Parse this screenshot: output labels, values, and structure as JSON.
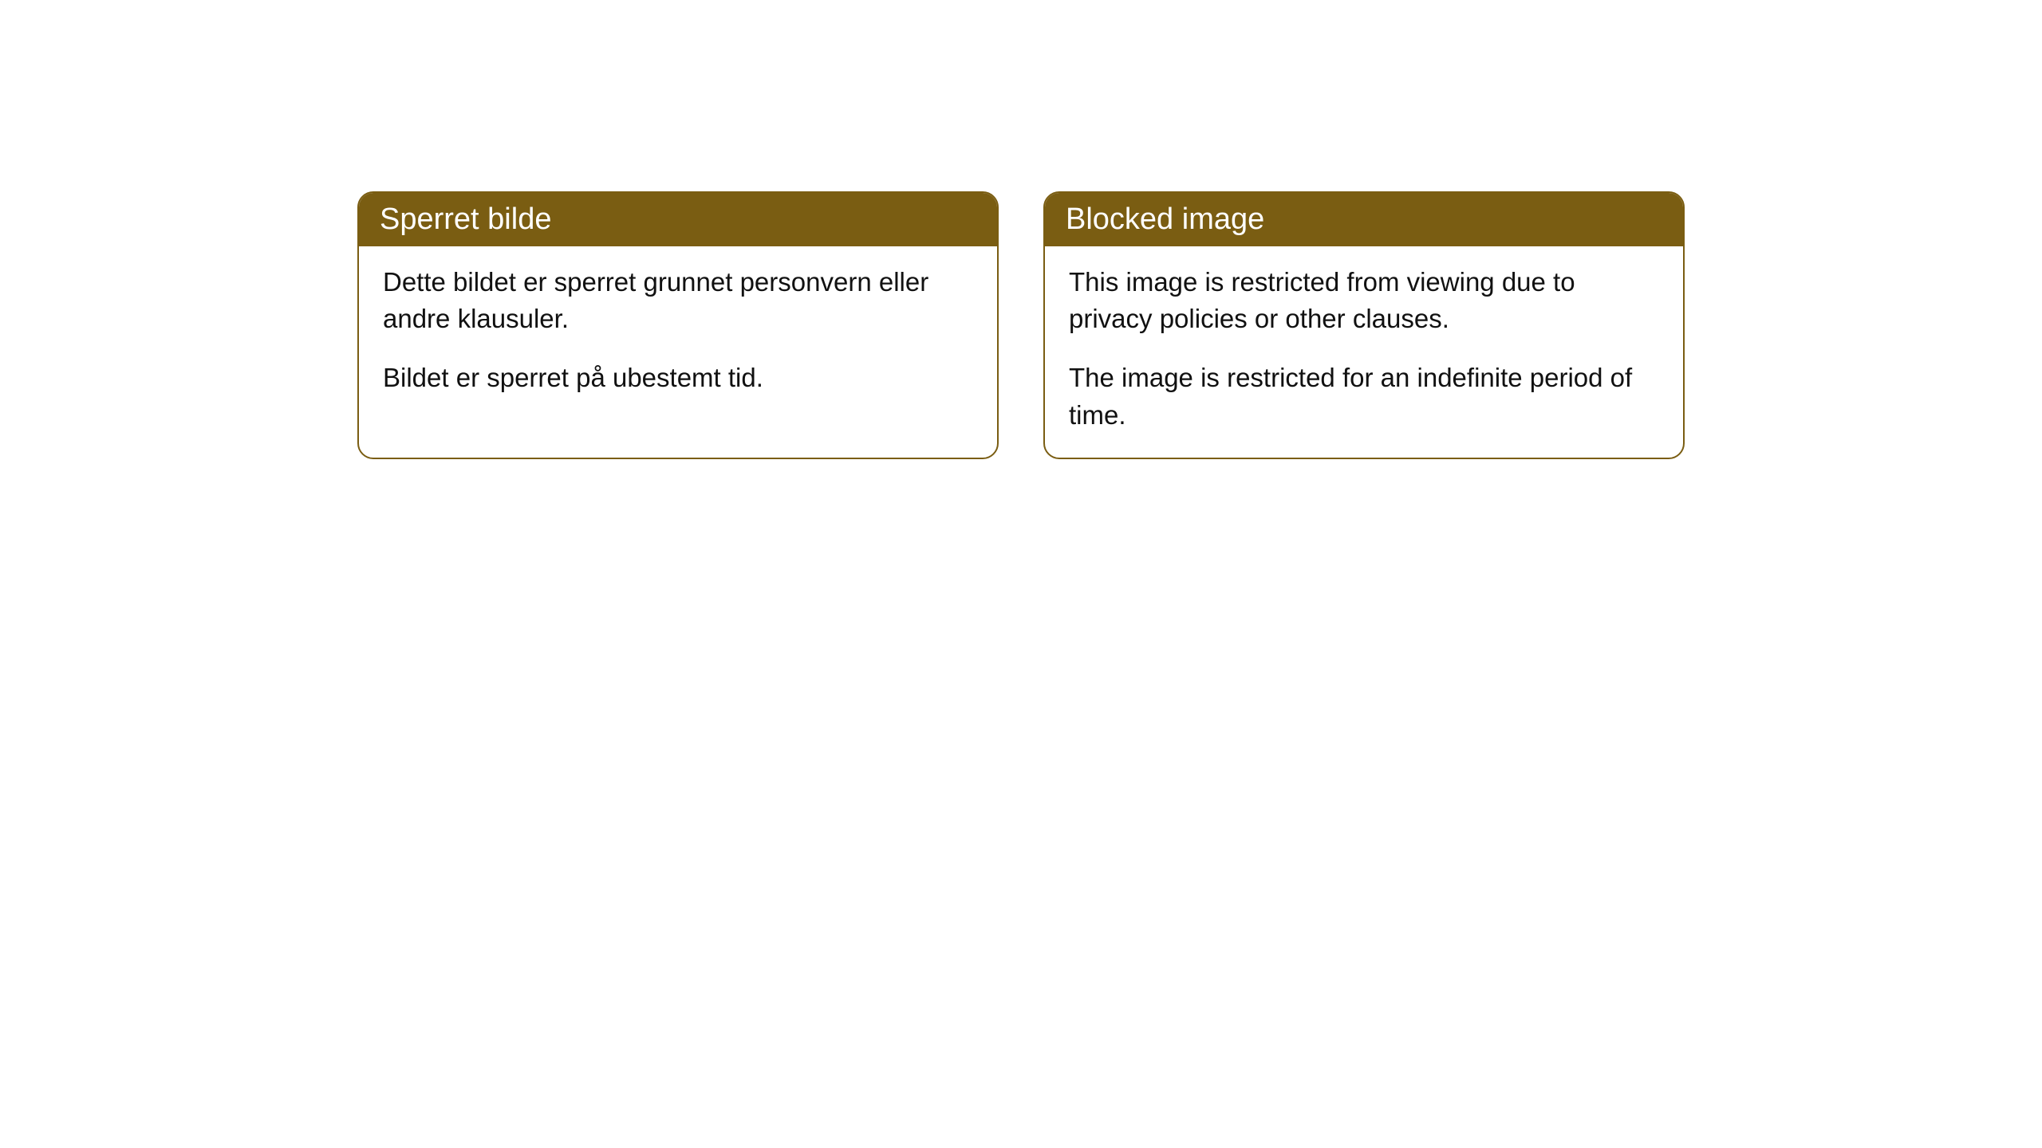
{
  "cards": [
    {
      "header": "Sperret bilde",
      "body_p1": "Dette bildet er sperret grunnet personvern eller andre klausuler.",
      "body_p2": "Bildet er sperret på ubestemt tid."
    },
    {
      "header": "Blocked image",
      "body_p1": "This image is restricted from viewing due to privacy policies or other clauses.",
      "body_p2": "The image is restricted for an indefinite period of time."
    }
  ],
  "styling": {
    "card_border_color": "#7a5d12",
    "card_header_bg": "#7a5d12",
    "card_header_text_color": "#ffffff",
    "card_body_bg": "#ffffff",
    "card_body_text_color": "#111111",
    "card_border_radius": 20,
    "header_font_size": 38,
    "body_font_size": 33,
    "page_bg": "#ffffff"
  }
}
